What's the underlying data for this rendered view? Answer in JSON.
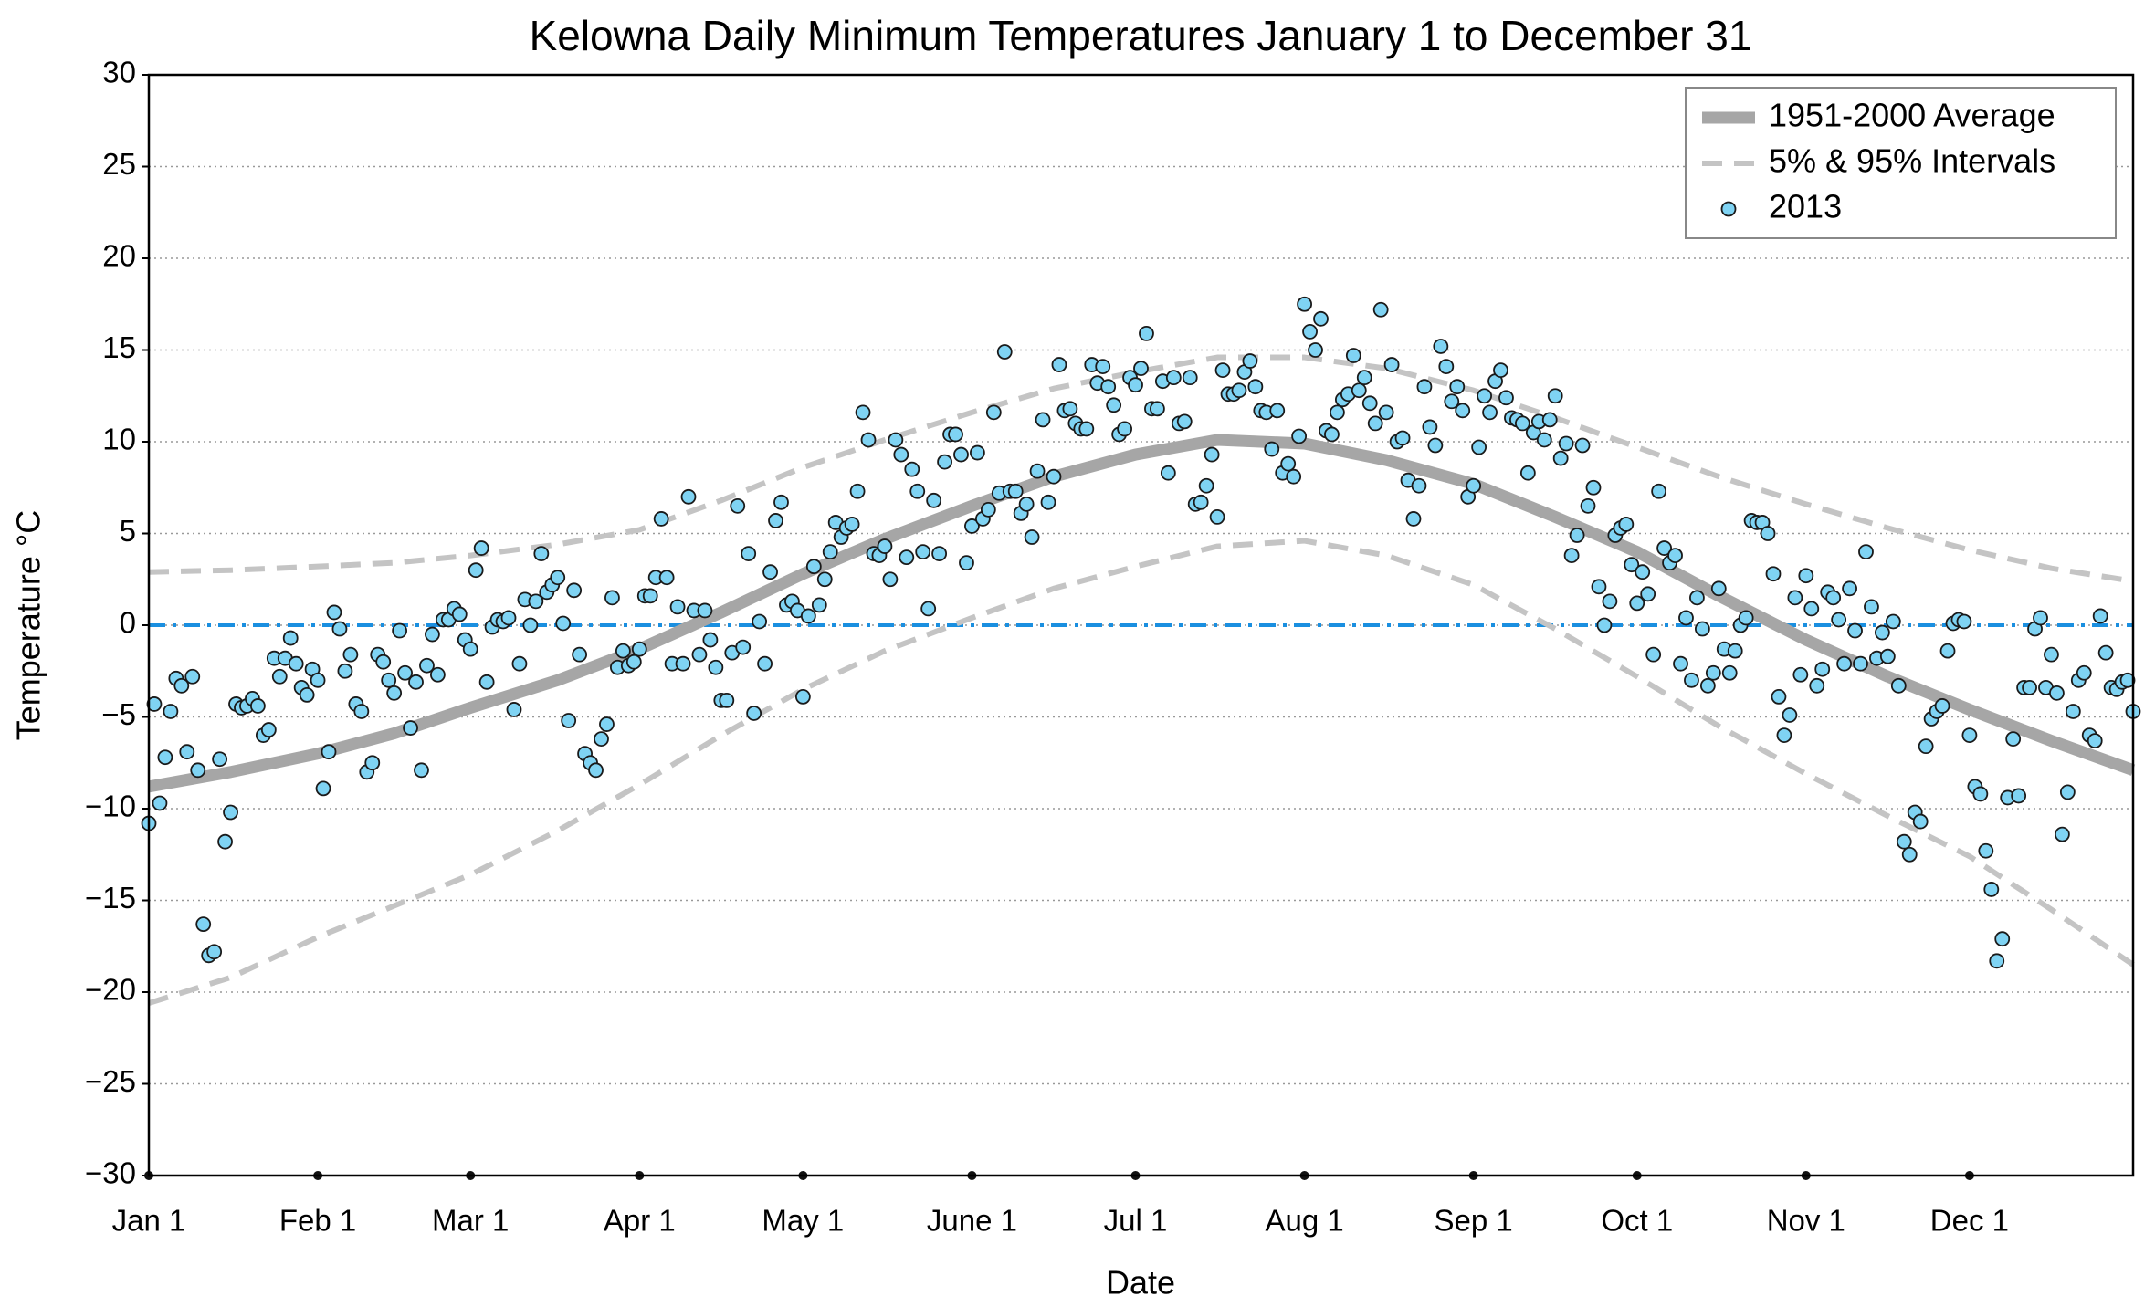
{
  "chart_data": {
    "type": "scatter",
    "title": "Kelowna Daily Minimum Temperatures January 1 to December 31",
    "x_label": "Date",
    "y_label": "Temperature °C",
    "xlim": [
      0,
      364
    ],
    "xticks": [
      {
        "value": 0,
        "label": "Jan 1"
      },
      {
        "value": 31,
        "label": "Feb 1"
      },
      {
        "value": 59,
        "label": "Mar 1"
      },
      {
        "value": 90,
        "label": "Apr 1"
      },
      {
        "value": 120,
        "label": "May 1"
      },
      {
        "value": 151,
        "label": "June 1"
      },
      {
        "value": 181,
        "label": "Jul 1"
      },
      {
        "value": 212,
        "label": "Aug 1"
      },
      {
        "value": 243,
        "label": "Sep 1"
      },
      {
        "value": 273,
        "label": "Oct 1"
      },
      {
        "value": 304,
        "label": "Nov 1"
      },
      {
        "value": 334,
        "label": "Dec 1"
      }
    ],
    "ylim": [
      -30,
      30
    ],
    "yticks": [
      {
        "value": -30,
        "label": "−30"
      },
      {
        "value": -25,
        "label": "−25"
      },
      {
        "value": -20,
        "label": "−20"
      },
      {
        "value": -15,
        "label": "−15"
      },
      {
        "value": -10,
        "label": "−10"
      },
      {
        "value": -5,
        "label": "−5"
      },
      0,
      5,
      10,
      15,
      20,
      25,
      30
    ],
    "grid": true,
    "legend": "upper right",
    "reference_line": {
      "value": 0,
      "color": "#1a8fe0",
      "style": "dashdot"
    },
    "average": {
      "name": "1951-2000 Average",
      "color": "#a6a6a6",
      "x": [
        0,
        15,
        31,
        45,
        59,
        75,
        90,
        105,
        120,
        135,
        151,
        166,
        181,
        196,
        212,
        227,
        243,
        258,
        273,
        288,
        304,
        319,
        334,
        349,
        364
      ],
      "values": [
        -8.8,
        -8.0,
        -7.0,
        -5.9,
        -4.5,
        -3.0,
        -1.3,
        0.7,
        2.8,
        4.7,
        6.5,
        8.1,
        9.3,
        10.1,
        9.9,
        9.0,
        7.7,
        5.9,
        4.0,
        1.6,
        -0.8,
        -2.8,
        -4.6,
        -6.3,
        -7.9
      ]
    },
    "intervals": {
      "name": "5% & 95% Intervals",
      "color": "#c4c4c4",
      "x": [
        0,
        15,
        31,
        45,
        59,
        75,
        90,
        105,
        120,
        135,
        151,
        166,
        181,
        196,
        212,
        227,
        243,
        258,
        273,
        288,
        304,
        319,
        334,
        349,
        364
      ],
      "lower": [
        -20.6,
        -19.2,
        -17.0,
        -15.3,
        -13.6,
        -11.2,
        -8.7,
        -6.0,
        -3.5,
        -1.4,
        0.4,
        2.0,
        3.2,
        4.3,
        4.6,
        3.8,
        2.2,
        -0.2,
        -2.8,
        -5.5,
        -8.1,
        -10.4,
        -12.6,
        -15.5,
        -18.5
      ],
      "upper": [
        2.9,
        3.0,
        3.2,
        3.4,
        3.8,
        4.4,
        5.2,
        6.8,
        8.6,
        10.1,
        11.6,
        12.9,
        13.8,
        14.6,
        14.6,
        14.0,
        12.8,
        11.3,
        9.7,
        8.1,
        6.6,
        5.3,
        4.1,
        3.1,
        2.4
      ]
    },
    "series": [
      {
        "name": "2013",
        "color": "#7fd3f3",
        "x": [
          0,
          1,
          2,
          3,
          4,
          5,
          6,
          7,
          8,
          9,
          10,
          11,
          12,
          13,
          14,
          15,
          16,
          17,
          18,
          19,
          20,
          21,
          22,
          23,
          24,
          25,
          26,
          27,
          28,
          29,
          30,
          31,
          32,
          33,
          34,
          35,
          36,
          37,
          38,
          39,
          40,
          41,
          42,
          43,
          44,
          45,
          46,
          47,
          48,
          49,
          50,
          51,
          52,
          53,
          54,
          55,
          56,
          57,
          58,
          59,
          60,
          61,
          62,
          63,
          64,
          65,
          66,
          67,
          68,
          69,
          70,
          71,
          72,
          73,
          74,
          75,
          76,
          77,
          78,
          79,
          80,
          81,
          82,
          83,
          84,
          85,
          86,
          87,
          88,
          89,
          90,
          91,
          92,
          93,
          94,
          95,
          96,
          97,
          98,
          99,
          100,
          101,
          102,
          103,
          104,
          105,
          106,
          107,
          108,
          109,
          110,
          111,
          112,
          113,
          114,
          115,
          116,
          117,
          118,
          119,
          120,
          121,
          122,
          123,
          124,
          125,
          126,
          127,
          128,
          129,
          130,
          131,
          132,
          133,
          134,
          135,
          136,
          137,
          138,
          139,
          140,
          141,
          142,
          143,
          144,
          145,
          146,
          147,
          148,
          149,
          150,
          151,
          152,
          153,
          154,
          155,
          156,
          157,
          158,
          159,
          160,
          161,
          162,
          163,
          164,
          165,
          166,
          167,
          168,
          169,
          170,
          171,
          172,
          173,
          174,
          175,
          176,
          177,
          178,
          179,
          180,
          181,
          182,
          183,
          184,
          185,
          186,
          187,
          188,
          189,
          190,
          191,
          192,
          193,
          194,
          195,
          196,
          197,
          198,
          199,
          200,
          201,
          202,
          203,
          204,
          205,
          206,
          207,
          208,
          209,
          210,
          211,
          212,
          213,
          214,
          215,
          216,
          217,
          218,
          219,
          220,
          221,
          222,
          223,
          224,
          225,
          226,
          227,
          228,
          229,
          230,
          231,
          232,
          233,
          234,
          235,
          236,
          237,
          238,
          239,
          240,
          241,
          242,
          243,
          244,
          245,
          246,
          247,
          248,
          249,
          250,
          251,
          252,
          253,
          254,
          255,
          256,
          257,
          258,
          259,
          260,
          261,
          262,
          263,
          264,
          265,
          266,
          267,
          268,
          269,
          270,
          271,
          272,
          273,
          274,
          275,
          276,
          277,
          278,
          279,
          280,
          281,
          282,
          283,
          284,
          285,
          286,
          287,
          288,
          289,
          290,
          291,
          292,
          293,
          294,
          295,
          296,
          297,
          298,
          299,
          300,
          301,
          302,
          303,
          304,
          305,
          306,
          307,
          308,
          309,
          310,
          311,
          312,
          313,
          314,
          315,
          316,
          317,
          318,
          319,
          320,
          321,
          322,
          323,
          324,
          325,
          326,
          327,
          328,
          329,
          330,
          331,
          332,
          333,
          334,
          335,
          336,
          337,
          338,
          339,
          340,
          341,
          342,
          343,
          344,
          345,
          346,
          347,
          348,
          349,
          350,
          351,
          352,
          353,
          354,
          355,
          356,
          357,
          358,
          359,
          360,
          361,
          362,
          363,
          364
        ],
        "values": [
          -10.8,
          -4.3,
          -9.7,
          -7.2,
          -4.7,
          -2.9,
          -3.3,
          -6.9,
          -2.8,
          -7.9,
          -16.3,
          -18.0,
          -17.8,
          -7.3,
          -11.8,
          -10.2,
          -4.3,
          -4.5,
          -4.4,
          -4.0,
          -4.4,
          -6.0,
          -5.7,
          -1.8,
          -2.8,
          -1.8,
          -0.7,
          -2.1,
          -3.4,
          -3.8,
          -2.4,
          -3.0,
          -8.9,
          -6.9,
          0.7,
          -0.2,
          -2.5,
          -1.6,
          -4.3,
          -4.7,
          -8.0,
          -7.5,
          -1.6,
          -2.0,
          -3.0,
          -3.7,
          -0.3,
          -2.6,
          -5.6,
          -3.1,
          -7.9,
          -2.2,
          -0.5,
          -2.7,
          0.3,
          0.3,
          0.9,
          0.6,
          -0.8,
          -1.3,
          3.0,
          4.2,
          -3.1,
          -0.1,
          0.3,
          0.2,
          0.4,
          -4.6,
          -2.1,
          1.4,
          0.0,
          1.3,
          3.9,
          1.8,
          2.2,
          2.6,
          0.1,
          -5.2,
          1.9,
          -1.6,
          -7.0,
          -7.5,
          -7.9,
          -6.2,
          -5.4,
          1.5,
          -2.3,
          -1.4,
          -2.2,
          -2.0,
          -1.3,
          1.6,
          1.6,
          2.6,
          5.8,
          2.6,
          -2.1,
          1.0,
          -2.1,
          7.0,
          0.8,
          -1.6,
          0.8,
          -0.8,
          -2.3,
          -4.1,
          -4.1,
          -1.5,
          6.5,
          -1.2,
          3.9,
          -4.8,
          0.2,
          -2.1,
          2.9,
          5.7,
          6.7,
          1.1,
          1.3,
          0.8,
          -3.9,
          0.5,
          3.2,
          1.1,
          2.5,
          4.0,
          5.6,
          4.8,
          5.3,
          5.5,
          7.3,
          11.6,
          10.1,
          3.9,
          3.8,
          4.3,
          2.5,
          10.1,
          9.3,
          3.7,
          8.5,
          7.3,
          4.0,
          0.9,
          6.8,
          3.9,
          8.9,
          10.4,
          10.4,
          9.3,
          3.4,
          5.4,
          9.4,
          5.8,
          6.3,
          11.6,
          7.2,
          14.9,
          7.3,
          7.3,
          6.1,
          6.6,
          4.8,
          8.4,
          11.2,
          6.7,
          8.1,
          14.2,
          11.7,
          11.8,
          11.0,
          10.7,
          10.7,
          14.2,
          13.2,
          14.1,
          13.0,
          12.0,
          10.4,
          10.7,
          13.5,
          13.1,
          14.0,
          15.9,
          11.8,
          11.8,
          13.3,
          8.3,
          13.5,
          11.0,
          11.1,
          13.5,
          6.6,
          6.7,
          7.6,
          9.3,
          5.9,
          13.9,
          12.6,
          12.6,
          12.8,
          13.8,
          14.4,
          13.0,
          11.7,
          11.6,
          9.6,
          11.7,
          8.3,
          8.8,
          8.1,
          10.3,
          17.5,
          16.0,
          15.0,
          16.7,
          10.6,
          10.4,
          11.6,
          12.3,
          12.6,
          14.7,
          12.8,
          13.5,
          12.1,
          11.0,
          17.2,
          11.6,
          14.2,
          10.0,
          10.2,
          7.9,
          5.8,
          7.6,
          13.0,
          10.8,
          9.8,
          15.2,
          14.1,
          12.2,
          13.0,
          11.7,
          7.0,
          7.6,
          9.7,
          12.5,
          11.6,
          13.3,
          13.9,
          12.4,
          11.3,
          11.2,
          11.0,
          8.3,
          10.5,
          11.1,
          10.1,
          11.2,
          12.5,
          9.1,
          9.9,
          3.8,
          4.9,
          9.8,
          6.5,
          7.5,
          2.1,
          0.0,
          1.3,
          4.9,
          5.3,
          5.5,
          3.3,
          1.2,
          2.9,
          1.7,
          -1.6,
          7.3,
          4.2,
          3.4,
          3.8,
          -2.1,
          0.4,
          -3.0,
          1.5,
          -0.2,
          -3.3,
          -2.6,
          2.0,
          -1.3,
          -2.6,
          -1.4,
          0.0,
          0.4,
          5.7,
          5.6,
          5.6,
          5.0,
          2.8,
          -3.9,
          -6.0,
          -4.9,
          1.5,
          -2.7,
          2.7,
          0.9,
          -3.3,
          -2.4,
          1.8,
          1.5,
          0.3,
          -2.1,
          2.0,
          -0.3,
          -2.1,
          4.0,
          1.0,
          -1.8,
          -0.4,
          -1.7,
          0.2,
          -3.3,
          -11.8,
          -12.5,
          -10.2,
          -10.7,
          -6.6,
          -5.1,
          -4.7,
          -4.4,
          -1.4,
          0.1,
          0.3,
          0.2,
          -6.0,
          -8.8,
          -9.2,
          -12.3,
          -14.4,
          -18.3,
          -17.1,
          -9.4,
          -6.2,
          -9.3,
          -3.4,
          -3.4,
          -0.2,
          0.4,
          -3.4,
          -1.6,
          -3.7,
          -11.4,
          -9.1,
          -4.7,
          -3.0,
          -2.6,
          -6.0,
          -6.3,
          0.5,
          -1.5,
          -3.4,
          -3.5,
          -3.1,
          -3.0,
          -4.7
        ]
      }
    ]
  }
}
